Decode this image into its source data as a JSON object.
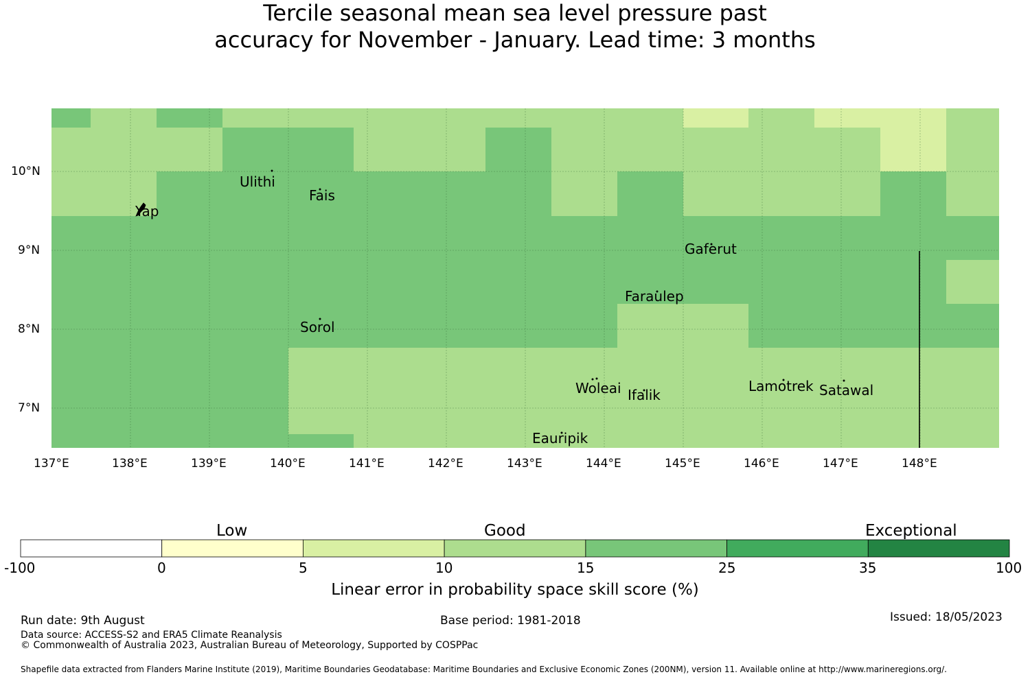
{
  "title": {
    "line1": "Tercile seasonal mean sea level pressure past",
    "line2": "accuracy for November - January. Lead time: 3 months"
  },
  "map": {
    "lat_labels": [
      "10°N",
      "9°N",
      "8°N",
      "7°N"
    ],
    "lon_labels": [
      "137°E",
      "138°E",
      "139°E",
      "140°E",
      "141°E",
      "142°E",
      "143°E",
      "144°E",
      "145°E",
      "146°E",
      "147°E",
      "148°E"
    ],
    "places": [
      "Ulithi",
      "Fais",
      "Yap",
      "Gaferut",
      "Faraulep",
      "Sorol",
      "Woleai",
      "Ifalik",
      "Lamotrek",
      "Satawal",
      "Eauripik"
    ],
    "colors": {
      "class_10_15": "#acdd8e",
      "class_15_25": "#78c679",
      "class_5_10": "#d9f0a3"
    }
  },
  "colorbar": {
    "categories": [
      "Low",
      "Good",
      "Exceptional"
    ],
    "ticks": [
      "-100",
      "0",
      "5",
      "10",
      "15",
      "25",
      "35",
      "100"
    ],
    "colors": [
      "#ffffff",
      "#ffffcc",
      "#d9f0a3",
      "#addd8e",
      "#78c679",
      "#41ab5d",
      "#238443"
    ],
    "label": "Linear error in probability space skill score (%)"
  },
  "footer": {
    "run_date": "Run date: 9th August",
    "base_period": "Base period: 1981-2018",
    "issued": "Issued: 18/05/2023",
    "data_source": "Data source: ACCESS-S2 and ERA5 Climate Reanalysis",
    "copyright": "© Commonwealth of Australia 2023, Australian Bureau of Meteorology, Supported by COSPPac",
    "shapefile": "Shapefile data extracted from Flanders Marine Institute (2019), Maritime Boundaries Geodatabase: Maritime Boundaries and Exclusive Economic Zones (200NM), version 11. Available online at http://www.marineregions.org/."
  }
}
